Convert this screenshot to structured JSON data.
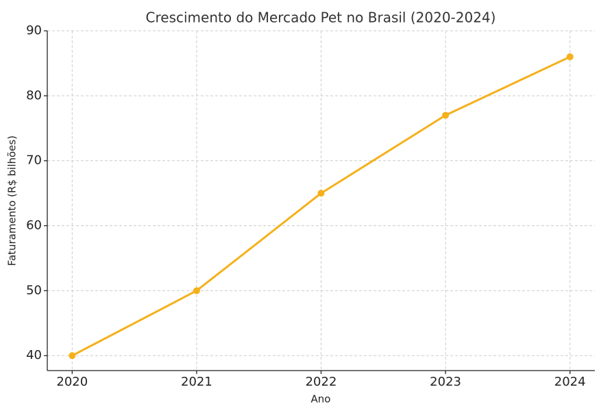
{
  "chart_data": {
    "type": "line",
    "title": "Crescimento do Mercado Pet no Brasil (2020-2024)",
    "x_label": "Ano",
    "y_label": "Faturamento (R$ bilhões)",
    "x": [
      2020,
      2021,
      2022,
      2023,
      2024
    ],
    "values": [
      40,
      50,
      65,
      77,
      86
    ],
    "color": "#f5b01a",
    "xlim": [
      2019.8,
      2024.2
    ],
    "xticks": [
      2020,
      2021,
      2022,
      2023,
      2024
    ],
    "ylim": [
      37.7,
      90
    ],
    "yticks": [
      40,
      50,
      60,
      70,
      80,
      90
    ],
    "grid": true,
    "markers": true
  }
}
